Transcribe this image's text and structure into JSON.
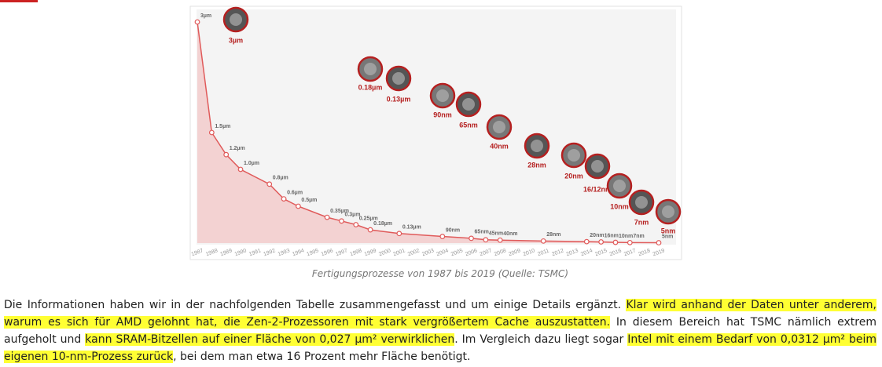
{
  "chart_data": {
    "type": "line",
    "x": [
      1987,
      1988,
      1989,
      1990,
      1992,
      1993,
      1994,
      1996,
      1997,
      1998,
      1999,
      2001,
      2004,
      2006,
      2007,
      2008,
      2011,
      2014,
      2015,
      2016,
      2017,
      2019
    ],
    "values": [
      3,
      1.5,
      1.2,
      1.0,
      0.8,
      0.6,
      0.5,
      0.35,
      0.3,
      0.25,
      0.18,
      0.13,
      0.09,
      0.065,
      0.045,
      0.04,
      0.028,
      0.02,
      0.016,
      0.01,
      0.007,
      0.005
    ],
    "value_labels": [
      "3µm",
      "1.5µm",
      "1.2µm",
      "1.0µm",
      "0.8µm",
      "0.6µm",
      "0.5µm",
      "0.35µm",
      "0.3µm",
      "0.25µm",
      "0.18µm",
      "0.13µm",
      "90nm",
      "65nm",
      "45nm",
      "40nm",
      "28nm",
      "20nm",
      "16nm",
      "10nm",
      "7nm",
      "5nm"
    ],
    "color": "#e05a5a",
    "area_color": "#f2c9c9",
    "xlim": [
      1987,
      2019
    ],
    "xticks": [
      1987,
      1988,
      1989,
      1990,
      1991,
      1992,
      1993,
      1994,
      1995,
      1996,
      1997,
      1998,
      1999,
      2000,
      2001,
      2002,
      2003,
      2004,
      2005,
      2006,
      2007,
      2008,
      2009,
      2010,
      2011,
      2012,
      2013,
      2014,
      2015,
      2016,
      2017,
      2018,
      2019
    ],
    "ylim": [
      0,
      3
    ],
    "annotations": [
      "3µm",
      "0.18µm",
      "0.13µm",
      "90nm",
      "65nm",
      "40nm",
      "28nm",
      "20nm",
      "16/12nm",
      "10nm",
      "7nm",
      "5nm"
    ]
  },
  "caption": "Fertigungsprozesse von 1987 bis 2019 (Quelle: TSMC)",
  "paragraph": [
    {
      "text": "Die Informationen haben wir in der nachfolgenden Tabelle zusammengefasst und um einige Details ergänzt. ",
      "highlight": false
    },
    {
      "text": "Klar wird anhand der Daten unter anderem, warum es sich für AMD gelohnt hat, die Zen-2-Prozessoren mit stark vergrößertem Cache auszustatten.",
      "highlight": true
    },
    {
      "text": " In diesem Bereich hat TSMC nämlich extrem aufgeholt und ",
      "highlight": false
    },
    {
      "text": "kann SRAM-Bitzellen auf einer Fläche von 0,027 µm² verwirklichen",
      "highlight": true
    },
    {
      "text": ". Im Vergleich dazu liegt sogar ",
      "highlight": false
    },
    {
      "text": "Intel mit einem Bedarf von 0,0312 µm² beim eigenen 10-nm-Prozess zurück",
      "highlight": true
    },
    {
      "text": ", bei dem man etwa 16 Prozent mehr Fläche benötigt.",
      "highlight": false
    }
  ]
}
